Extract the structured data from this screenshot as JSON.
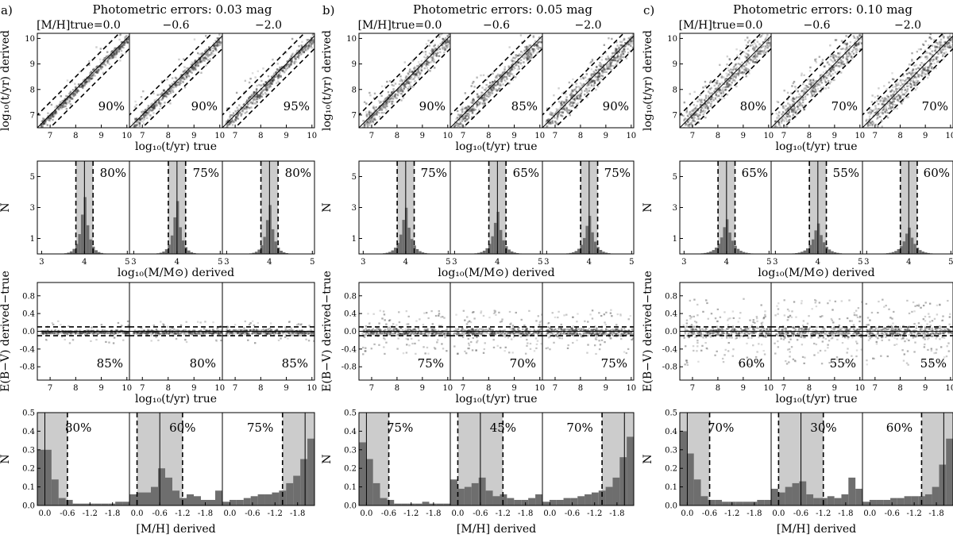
{
  "figure": {
    "row_xlabels": [
      "log₁₀(t/yr) true",
      "log₁₀(M/M⊙) derived",
      "log₁₀(t/yr) true",
      "[M/H] derived"
    ],
    "row_ylabels": [
      "log₁₀(t/yr) derived",
      "N",
      "E(B−V) derived−true",
      "N"
    ],
    "tick_labels": {
      "age": [
        "7",
        "8",
        "9",
        "10"
      ],
      "mass": [
        "3",
        "4",
        "5"
      ],
      "mass_y": [
        "1",
        "3",
        "5"
      ],
      "ebv_y": [
        "0.8",
        "0.4",
        "0.0",
        "-0.4",
        "-0.8"
      ],
      "mh_x": [
        "0.0",
        "-0.6",
        "-1.2",
        "-1.8"
      ],
      "mh_y": [
        "0.5",
        "0.4",
        "0.3",
        "0.2",
        "0.1",
        "0.0"
      ]
    }
  },
  "panels": [
    {
      "label": "a)",
      "title": "Photometric errors: 0.03 mag"
    },
    {
      "label": "b)",
      "title": "Photometric errors: 0.05 mag"
    },
    {
      "label": "c)",
      "title": "Photometric errors: 0.10 mag"
    }
  ],
  "metallicity_headers": [
    "[M/H]true=0.0",
    "−0.6",
    "−2.0"
  ],
  "chart_data": {
    "type": "multi-panel (scatter density + histogram)",
    "panels": [
      {
        "photometric_error_mag": 0.03,
        "age_recovery_pct": [
          90,
          90,
          95
        ],
        "mass_recovery_pct": [
          80,
          75,
          80
        ],
        "ebv_recovery_pct": [
          85,
          80,
          85
        ],
        "metallicity_recovery_pct": [
          80,
          60,
          75
        ]
      },
      {
        "photometric_error_mag": 0.05,
        "age_recovery_pct": [
          90,
          85,
          90
        ],
        "mass_recovery_pct": [
          75,
          65,
          75
        ],
        "ebv_recovery_pct": [
          75,
          70,
          75
        ],
        "metallicity_recovery_pct": [
          75,
          45,
          70
        ]
      },
      {
        "photometric_error_mag": 0.1,
        "age_recovery_pct": [
          80,
          70,
          70
        ],
        "mass_recovery_pct": [
          65,
          55,
          60
        ],
        "ebv_recovery_pct": [
          60,
          55,
          55
        ],
        "metallicity_recovery_pct": [
          70,
          30,
          60
        ]
      }
    ],
    "true_metallicity": [
      0.0,
      -0.6,
      -2.0
    ],
    "axes": {
      "age_xlim": [
        6.5,
        10.1
      ],
      "age_ylim": [
        6.5,
        10.2
      ],
      "mass_xlim": [
        2.9,
        5.05
      ],
      "mass_ylim": [
        0,
        6
      ],
      "ebv_xlim": [
        6.5,
        10.1
      ],
      "ebv_ylim": [
        -1.1,
        1.1
      ],
      "mh_xlim": [
        0.2,
        -2.25
      ],
      "mh_ylim": [
        0,
        0.5
      ]
    },
    "percent_labels": {
      "age": [
        "90%",
        "90%",
        "95%",
        "90%",
        "85%",
        "90%",
        "80%",
        "70%",
        "70%"
      ],
      "mass": [
        "80%",
        "75%",
        "80%",
        "75%",
        "65%",
        "75%",
        "65%",
        "55%",
        "60%"
      ],
      "ebv": [
        "85%",
        "80%",
        "85%",
        "75%",
        "70%",
        "75%",
        "60%",
        "55%",
        "55%"
      ],
      "mh": [
        "80%",
        "60%",
        "75%",
        "75%",
        "45%",
        "70%",
        "70%",
        "30%",
        "60%"
      ]
    },
    "mh_histograms": [
      [
        0.3,
        0.3,
        0.14,
        0.04,
        0.03,
        0.01,
        0.01,
        0.01,
        0.01,
        0.01,
        0.01,
        0.02,
        0.02
      ],
      [
        0.06,
        0.07,
        0.07,
        0.1,
        0.2,
        0.15,
        0.08,
        0.04,
        0.06,
        0.05,
        0.03,
        0.03,
        0.08
      ],
      [
        0.02,
        0.03,
        0.03,
        0.04,
        0.05,
        0.06,
        0.06,
        0.07,
        0.08,
        0.12,
        0.16,
        0.25,
        0.36
      ],
      [
        0.34,
        0.25,
        0.12,
        0.04,
        0.03,
        0.01,
        0.01,
        0.01,
        0.01,
        0.02,
        0.01,
        0.01,
        0.01
      ],
      [
        0.14,
        0.09,
        0.1,
        0.12,
        0.15,
        0.08,
        0.05,
        0.06,
        0.04,
        0.03,
        0.03,
        0.04,
        0.06
      ],
      [
        0.02,
        0.03,
        0.03,
        0.04,
        0.04,
        0.05,
        0.06,
        0.07,
        0.08,
        0.1,
        0.15,
        0.26,
        0.37
      ],
      [
        0.4,
        0.28,
        0.14,
        0.05,
        0.03,
        0.03,
        0.02,
        0.02,
        0.02,
        0.02,
        0.02,
        0.03,
        0.03
      ],
      [
        0.09,
        0.07,
        0.1,
        0.12,
        0.13,
        0.06,
        0.04,
        0.04,
        0.05,
        0.04,
        0.06,
        0.15,
        0.09
      ],
      [
        0.02,
        0.03,
        0.03,
        0.03,
        0.04,
        0.04,
        0.05,
        0.05,
        0.05,
        0.06,
        0.1,
        0.22,
        0.36
      ]
    ]
  }
}
